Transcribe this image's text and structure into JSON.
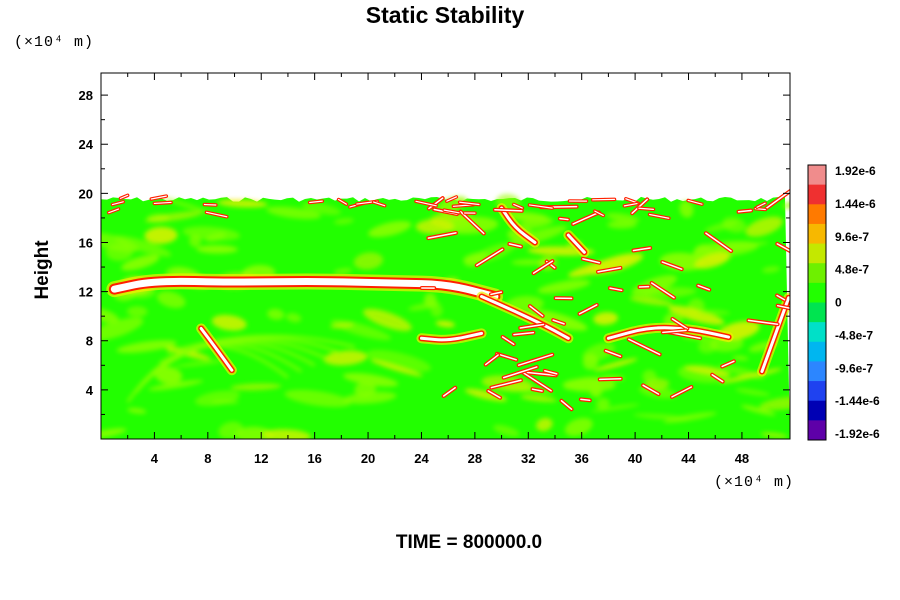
{
  "chart_data": {
    "type": "heatmap",
    "title": "Static Stability",
    "ylabel": "Height",
    "xunit": "(×10⁴ m)",
    "yunit": "(×10⁴ m)",
    "xlim": [
      0,
      51.6
    ],
    "ylim": [
      0,
      29.8
    ],
    "xticks": [
      4,
      8,
      12,
      16,
      20,
      24,
      28,
      32,
      36,
      40,
      44,
      48
    ],
    "yticks": [
      4,
      8,
      12,
      16,
      20,
      24,
      28
    ],
    "data_top": 19.8,
    "time_label": "TIME = 800000.0",
    "colorbar": {
      "labels": [
        "1.92e-6",
        "1.44e-6",
        "9.6e-7",
        "4.8e-7",
        "0",
        "-4.8e-7",
        "-9.6e-7",
        "-1.44e-6",
        "-1.92e-6"
      ],
      "colors": [
        "#f08c8c",
        "#ef3030",
        "#ff7a00",
        "#f7b800",
        "#c4e800",
        "#6ef000",
        "#22ff00",
        "#00e450",
        "#00e0c8",
        "#00b6f0",
        "#2c86ff",
        "#1f42f0",
        "#0000b4",
        "#5e00a8"
      ]
    },
    "field_colors": {
      "background": "#22ff00",
      "light": "#9aff00",
      "yellow": "#f0f000",
      "red": "#ff2000",
      "white": "#ffffff"
    },
    "features": [
      {
        "kind": "band",
        "x": [
          1.0,
          4,
          10,
          16,
          22,
          26,
          29.5
        ],
        "y": [
          12.2,
          12.9,
          12.75,
          12.85,
          12.7,
          12.6,
          11.6
        ],
        "note": "long white filament"
      },
      {
        "kind": "band",
        "x": [
          28.5,
          31,
          33.5,
          35
        ],
        "y": [
          11.6,
          10.4,
          9.1,
          8.2
        ]
      },
      {
        "kind": "band",
        "x": [
          38,
          41,
          44,
          47
        ],
        "y": [
          8.2,
          9.1,
          9.0,
          8.3
        ]
      },
      {
        "kind": "band",
        "x": [
          24,
          26,
          28.5
        ],
        "y": [
          8.2,
          8.0,
          8.6
        ]
      },
      {
        "kind": "band",
        "x": [
          30,
          31,
          32.5
        ],
        "y": [
          18.8,
          17.2,
          16.0
        ]
      },
      {
        "kind": "band",
        "x": [
          49.5,
          50.5,
          51.5
        ],
        "y": [
          5.5,
          8.5,
          11.5
        ]
      },
      {
        "kind": "band",
        "x": [
          7.5,
          8.6,
          9.8
        ],
        "y": [
          9.0,
          7.4,
          5.6
        ]
      },
      {
        "kind": "band",
        "x": [
          35,
          36.2
        ],
        "y": [
          16.6,
          15.2
        ]
      }
    ]
  }
}
